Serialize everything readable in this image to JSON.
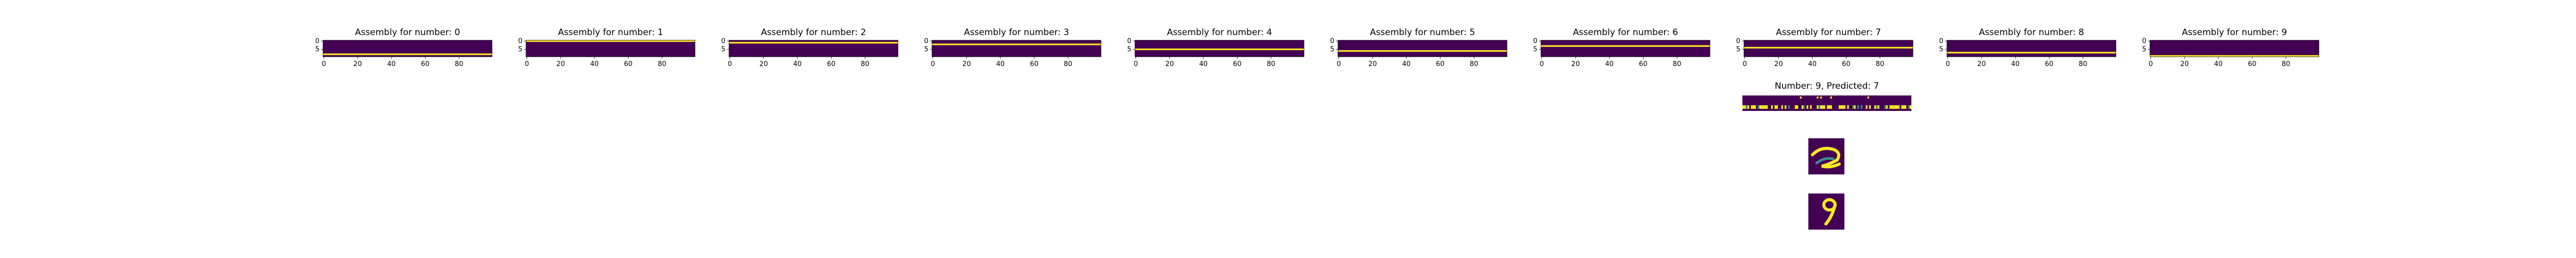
{
  "colors": {
    "background": "#ffffff",
    "cell_off": "#440154",
    "cell_on": "#fde725",
    "cell_mid": "#3b8c8c",
    "axis": "#000000"
  },
  "chart_data": [
    {
      "type": "heatmap",
      "title": "Assembly for number: 0",
      "x_ticks": [
        "0",
        "20",
        "40",
        "60",
        "80"
      ],
      "y_ticks": [
        "0",
        "5"
      ],
      "xlim": [
        0,
        100
      ],
      "ylim": [
        0,
        10
      ],
      "active_rows": [
        8
      ],
      "colormap": "viridis"
    },
    {
      "type": "heatmap",
      "title": "Assembly for number: 1",
      "x_ticks": [
        "0",
        "20",
        "40",
        "60",
        "80"
      ],
      "y_ticks": [
        "0",
        "5"
      ],
      "xlim": [
        0,
        100
      ],
      "ylim": [
        0,
        10
      ],
      "active_rows": [
        0
      ],
      "colormap": "viridis"
    },
    {
      "type": "heatmap",
      "title": "Assembly for number: 2",
      "x_ticks": [
        "0",
        "20",
        "40",
        "60",
        "80"
      ],
      "y_ticks": [
        "0",
        "5"
      ],
      "xlim": [
        0,
        100
      ],
      "ylim": [
        0,
        10
      ],
      "active_rows": [
        1
      ],
      "colormap": "viridis"
    },
    {
      "type": "heatmap",
      "title": "Assembly for number: 3",
      "x_ticks": [
        "0",
        "20",
        "40",
        "60",
        "80"
      ],
      "y_ticks": [
        "0",
        "5"
      ],
      "xlim": [
        0,
        100
      ],
      "ylim": [
        0,
        10
      ],
      "active_rows": [
        2
      ],
      "colormap": "viridis"
    },
    {
      "type": "heatmap",
      "title": "Assembly for number: 4",
      "x_ticks": [
        "0",
        "20",
        "40",
        "60",
        "80"
      ],
      "y_ticks": [
        "0",
        "5"
      ],
      "xlim": [
        0,
        100
      ],
      "ylim": [
        0,
        10
      ],
      "active_rows": [
        5
      ],
      "colormap": "viridis"
    },
    {
      "type": "heatmap",
      "title": "Assembly for number: 5",
      "x_ticks": [
        "0",
        "20",
        "40",
        "60",
        "80"
      ],
      "y_ticks": [
        "0",
        "5"
      ],
      "xlim": [
        0,
        100
      ],
      "ylim": [
        0,
        10
      ],
      "active_rows": [
        6
      ],
      "colormap": "viridis"
    },
    {
      "type": "heatmap",
      "title": "Assembly for number: 6",
      "x_ticks": [
        "0",
        "20",
        "40",
        "60",
        "80"
      ],
      "y_ticks": [
        "0",
        "5"
      ],
      "xlim": [
        0,
        100
      ],
      "ylim": [
        0,
        10
      ],
      "active_rows": [
        3
      ],
      "colormap": "viridis"
    },
    {
      "type": "heatmap",
      "title": "Assembly for number: 7",
      "x_ticks": [
        "0",
        "20",
        "40",
        "60",
        "80"
      ],
      "y_ticks": [
        "0",
        "5"
      ],
      "xlim": [
        0,
        100
      ],
      "ylim": [
        0,
        10
      ],
      "active_rows": [
        4
      ],
      "colormap": "viridis"
    },
    {
      "type": "heatmap",
      "title": "Assembly for number: 8",
      "x_ticks": [
        "0",
        "20",
        "40",
        "60",
        "80"
      ],
      "y_ticks": [
        "0",
        "5"
      ],
      "xlim": [
        0,
        100
      ],
      "ylim": [
        0,
        10
      ],
      "active_rows": [
        7
      ],
      "colormap": "viridis"
    },
    {
      "type": "heatmap",
      "title": "Assembly for number: 9",
      "x_ticks": [
        "0",
        "20",
        "40",
        "60",
        "80"
      ],
      "y_ticks": [
        "0",
        "5"
      ],
      "xlim": [
        0,
        100
      ],
      "ylim": [
        0,
        10
      ],
      "active_rows": [
        9
      ],
      "colormap": "viridis"
    },
    {
      "type": "heatmap",
      "title": "Number: 9, Predicted: 7",
      "rows": 2,
      "columns": 100,
      "colormap": "viridis"
    }
  ],
  "digit_images": [
    {
      "label": "reconstruction",
      "colormap": "viridis"
    },
    {
      "label": "input digit 9",
      "colormap": "viridis"
    }
  ]
}
